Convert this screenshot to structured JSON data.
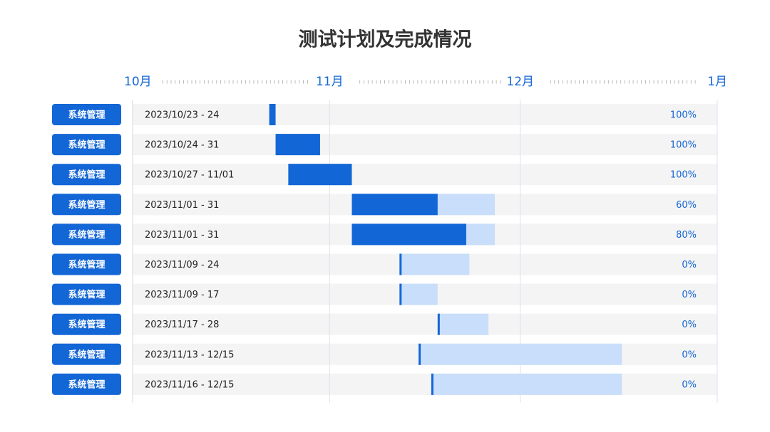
{
  "chart_data": {
    "type": "gantt",
    "title": "测试计划及完成情况",
    "xlim": [
      0,
      92
    ],
    "xticks": [
      {
        "value": 0,
        "label": "10月"
      },
      {
        "value": 31,
        "label": "11月"
      },
      {
        "value": 61,
        "label": "12月"
      },
      {
        "value": 92,
        "label": "1月"
      }
    ],
    "categories": [
      "系统管理",
      "系统管理",
      "系统管理",
      "系统管理",
      "系统管理",
      "系统管理",
      "系统管理",
      "系统管理",
      "系统管理",
      "系统管理"
    ],
    "dates": [
      "2023/10/23 - 24",
      "2023/10/24 - 31",
      "2023/10/27 - 11/01",
      "2023/11/01 - 31",
      "2023/11/01 - 31",
      "2023/11/09 - 24",
      "2023/11/09 - 17",
      "2023/11/17 - 28",
      "2023/11/13 - 12/15",
      "2023/11/16 - 12/15"
    ],
    "start": [
      21.5,
      22.5,
      24.5,
      34.5,
      34.5,
      42,
      42,
      48,
      45,
      47
    ],
    "end": [
      22.5,
      29.5,
      34.5,
      57,
      57,
      53,
      48,
      56,
      77,
      77
    ],
    "values": [
      100,
      100,
      100,
      60,
      80,
      0,
      0,
      0,
      0,
      0
    ],
    "value_labels": [
      "100%",
      "100%",
      "100%",
      "60%",
      "80%",
      "0%",
      "0%",
      "0%",
      "0%",
      "0%"
    ],
    "color": "#1366d6",
    "track_color": "#c9defa"
  }
}
